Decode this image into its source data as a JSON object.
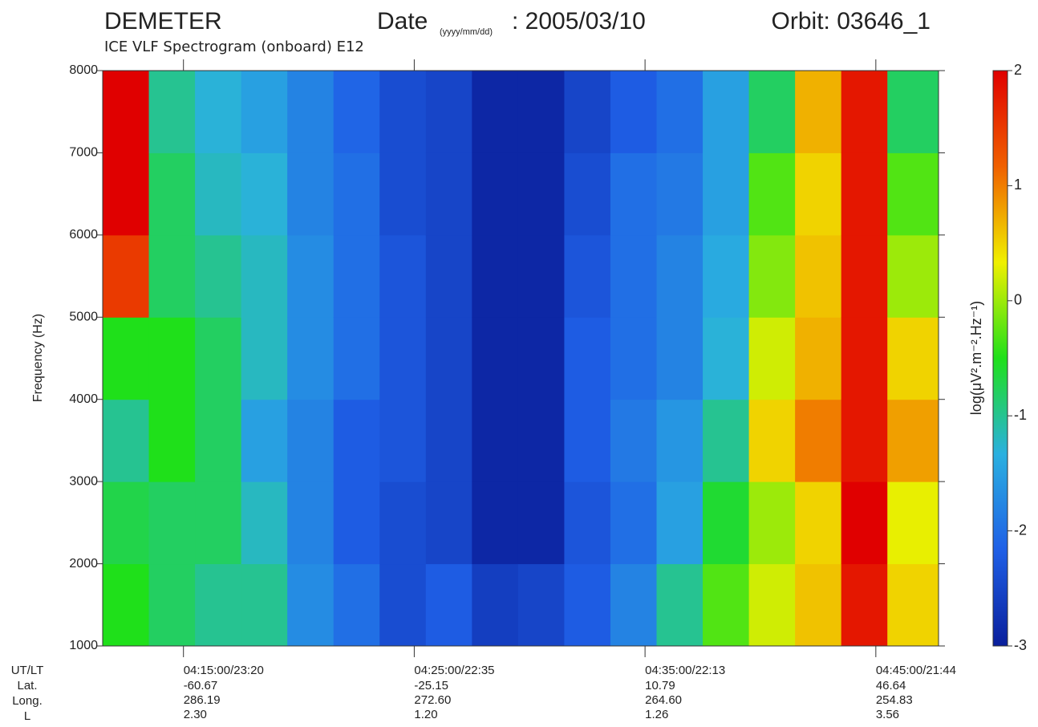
{
  "chart_data": {
    "type": "heatmap",
    "title": "DEMETER",
    "date_label": "Date",
    "date_format": "(yyyy/mm/dd)",
    "date_value": ": 2005/03/10",
    "orbit": "Orbit: 03646_1",
    "subtitle": "ICE VLF Spectrogram (onboard) E12",
    "y_label": "Frequency (Hz)",
    "colorbar_label": "log(μV².m⁻².Hz⁻¹)",
    "x": [
      "04:12:30",
      "04:14:30",
      "04:16:30",
      "04:18:30",
      "04:20:30",
      "04:22:30",
      "04:24:30",
      "04:26:30",
      "04:28:30",
      "04:30:30",
      "04:32:30",
      "04:34:30",
      "04:36:30",
      "04:38:30",
      "04:40:30",
      "04:42:30",
      "04:44:30",
      "04:46:30"
    ],
    "y": [
      1500,
      2500,
      3500,
      4500,
      5500,
      6500,
      7500
    ],
    "z": [
      [
        -0.5,
        -0.7,
        -1,
        -0.5,
        1.5,
        2,
        2
      ],
      [
        -0.8,
        -0.8,
        -0.5,
        -0.5,
        -0.8,
        -0.8,
        -1
      ],
      [
        -1,
        -0.8,
        -0.8,
        -0.8,
        -1,
        -1.2,
        -1.3
      ],
      [
        -1,
        -1.2,
        -1.5,
        -1.2,
        -1.2,
        -1.3,
        -1.5
      ],
      [
        -1.7,
        -1.8,
        -1.8,
        -1.7,
        -1.7,
        -1.8,
        -1.8
      ],
      [
        -2,
        -2.2,
        -2.2,
        -2,
        -2,
        -2,
        -2.1
      ],
      [
        -2.4,
        -2.4,
        -2.3,
        -2.3,
        -2.3,
        -2.4,
        -2.4
      ],
      [
        -2.2,
        -2.5,
        -2.5,
        -2.5,
        -2.5,
        -2.5,
        -2.5
      ],
      [
        -2.6,
        -2.9,
        -2.9,
        -2.9,
        -2.9,
        -2.9,
        -2.9
      ],
      [
        -2.5,
        -2.9,
        -2.9,
        -2.9,
        -2.9,
        -2.9,
        -2.9
      ],
      [
        -2.2,
        -2.3,
        -2.2,
        -2.2,
        -2.3,
        -2.4,
        -2.5
      ],
      [
        -1.8,
        -2,
        -1.9,
        -2,
        -2,
        -2,
        -2.2
      ],
      [
        -1,
        -1.5,
        -1.6,
        -1.8,
        -1.8,
        -1.9,
        -2
      ],
      [
        -0.3,
        -0.6,
        -1,
        -1.3,
        -1.4,
        -1.5,
        -1.5
      ],
      [
        0.2,
        0,
        0.5,
        0.2,
        -0.1,
        -0.3,
        -0.8
      ],
      [
        0.6,
        0.5,
        1,
        0.7,
        0.6,
        0.5,
        0.7
      ],
      [
        1.8,
        2,
        1.8,
        1.8,
        1.8,
        1.8,
        1.8
      ],
      [
        0.5,
        0.3,
        0.8,
        0.5,
        0,
        -0.3,
        -0.8
      ]
    ],
    "xlim": [
      "04:11:30",
      "04:47:43"
    ],
    "xticks": [
      {
        "value": "04:15:00",
        "label": "04:15:00/23:20"
      },
      {
        "value": "04:25:00",
        "label": "04:25:00/22:35"
      },
      {
        "value": "04:35:00",
        "label": "04:35:00/22:13"
      },
      {
        "value": "04:45:00",
        "label": "04:45:00/21:44"
      }
    ],
    "ylim": [
      1000,
      8000
    ],
    "yticks": [
      1000,
      2000,
      3000,
      4000,
      5000,
      6000,
      7000,
      8000
    ],
    "zlim": [
      -3,
      2
    ],
    "zticks": [
      -3,
      -2,
      -1,
      0,
      1,
      2
    ],
    "colormap": [
      "#0a1f9c",
      "#1f5fe6",
      "#2ab0e0",
      "#1fe01a",
      "#f0f000",
      "#f06000",
      "#e00000"
    ],
    "ephemeris": {
      "labels": [
        "UT/LT",
        "Lat.",
        "Long.",
        "L"
      ],
      "rows": [
        [
          "-60.67",
          "-25.15",
          "10.79",
          "46.64"
        ],
        [
          "286.19",
          "272.60",
          "264.60",
          "254.83"
        ],
        [
          "2.30",
          "1.20",
          "1.26",
          "3.56"
        ]
      ]
    }
  }
}
